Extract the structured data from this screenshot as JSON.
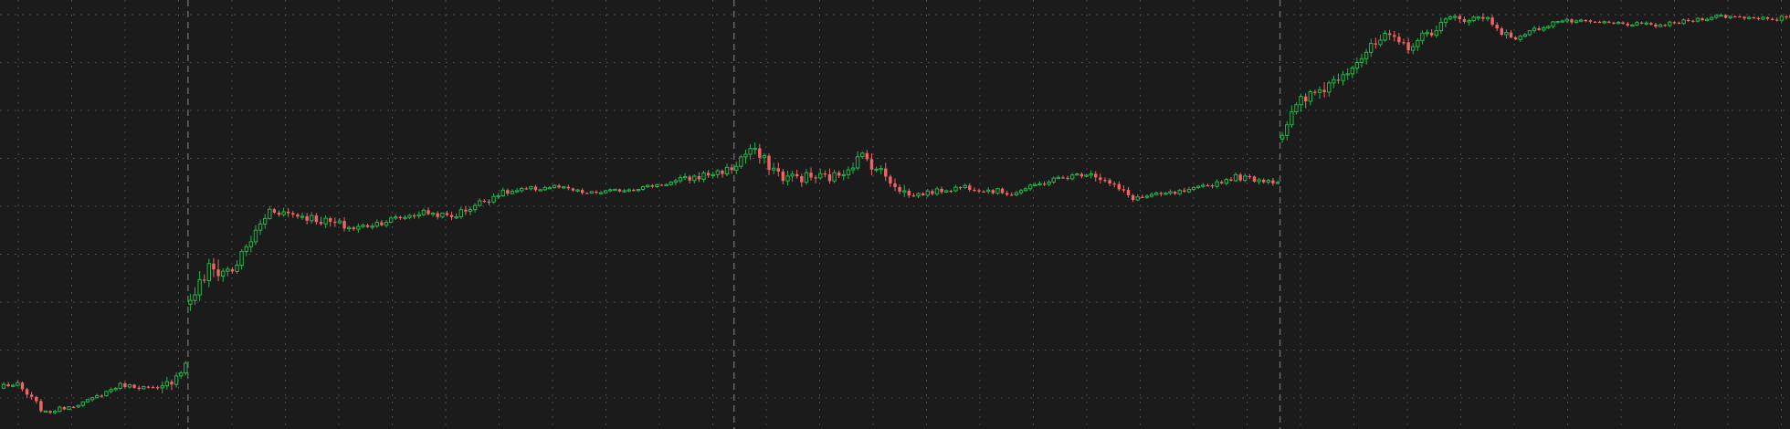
{
  "chart_data": {
    "type": "candlestick",
    "title": "",
    "xlabel": "",
    "ylabel": "",
    "ylim": [
      0,
      8.8
    ],
    "grid": true,
    "session_breaks": [
      40,
      157,
      274
    ],
    "colors": {
      "up": "#22b44a",
      "down": "#f26464",
      "grid": "#4a4a4a",
      "session_line": "#6a6a6a",
      "background": "#1b1b1b"
    },
    "segments": [
      {
        "start": 0,
        "end": 3,
        "from": 0.75,
        "to": 0.73,
        "noise": 0.05
      },
      {
        "start": 3,
        "end": 9,
        "from": 0.73,
        "to": 0.15,
        "noise": 0.07
      },
      {
        "start": 9,
        "end": 18,
        "from": 0.15,
        "to": 0.4,
        "noise": 0.04
      },
      {
        "start": 18,
        "end": 25,
        "from": 0.4,
        "to": 0.75,
        "noise": 0.04
      },
      {
        "start": 25,
        "end": 34,
        "from": 0.75,
        "to": 0.65,
        "noise": 0.04
      },
      {
        "start": 34,
        "end": 39,
        "from": 0.65,
        "to": 1.2,
        "noise": 0.12
      },
      {
        "start": 39,
        "end": 40,
        "from": 1.2,
        "to": 1.25,
        "noise": 0.05
      },
      {
        "start": 40,
        "end": 44,
        "from": 2.6,
        "to": 3.2,
        "noise": 0.18
      },
      {
        "start": 44,
        "end": 49,
        "from": 3.2,
        "to": 3.2,
        "noise": 0.2
      },
      {
        "start": 49,
        "end": 57,
        "from": 3.2,
        "to": 4.5,
        "noise": 0.12
      },
      {
        "start": 57,
        "end": 65,
        "from": 4.5,
        "to": 4.35,
        "noise": 0.08
      },
      {
        "start": 65,
        "end": 75,
        "from": 4.35,
        "to": 4.1,
        "noise": 0.1
      },
      {
        "start": 75,
        "end": 90,
        "from": 4.1,
        "to": 4.45,
        "noise": 0.07
      },
      {
        "start": 90,
        "end": 96,
        "from": 4.45,
        "to": 4.35,
        "noise": 0.06
      },
      {
        "start": 96,
        "end": 106,
        "from": 4.35,
        "to": 4.85,
        "noise": 0.08
      },
      {
        "start": 106,
        "end": 118,
        "from": 4.85,
        "to": 5.0,
        "noise": 0.06
      },
      {
        "start": 118,
        "end": 125,
        "from": 5.0,
        "to": 4.85,
        "noise": 0.04
      },
      {
        "start": 125,
        "end": 135,
        "from": 4.85,
        "to": 4.95,
        "noise": 0.04
      },
      {
        "start": 135,
        "end": 144,
        "from": 4.95,
        "to": 5.1,
        "noise": 0.04
      },
      {
        "start": 144,
        "end": 157,
        "from": 5.1,
        "to": 5.4,
        "noise": 0.08
      },
      {
        "start": 157,
        "end": 160,
        "from": 5.5,
        "to": 5.8,
        "noise": 0.15
      },
      {
        "start": 160,
        "end": 167,
        "from": 5.8,
        "to": 5.2,
        "noise": 0.12
      },
      {
        "start": 167,
        "end": 178,
        "from": 5.2,
        "to": 5.2,
        "noise": 0.12
      },
      {
        "start": 178,
        "end": 184,
        "from": 5.2,
        "to": 5.65,
        "noise": 0.12
      },
      {
        "start": 184,
        "end": 194,
        "from": 5.65,
        "to": 4.8,
        "noise": 0.12
      },
      {
        "start": 194,
        "end": 206,
        "from": 4.8,
        "to": 5.0,
        "noise": 0.05
      },
      {
        "start": 206,
        "end": 216,
        "from": 5.0,
        "to": 4.85,
        "noise": 0.06
      },
      {
        "start": 216,
        "end": 225,
        "from": 4.85,
        "to": 5.15,
        "noise": 0.05
      },
      {
        "start": 225,
        "end": 233,
        "from": 5.15,
        "to": 5.3,
        "noise": 0.05
      },
      {
        "start": 233,
        "end": 242,
        "from": 5.3,
        "to": 4.75,
        "noise": 0.08
      },
      {
        "start": 242,
        "end": 254,
        "from": 4.75,
        "to": 4.9,
        "noise": 0.05
      },
      {
        "start": 254,
        "end": 264,
        "from": 4.9,
        "to": 5.2,
        "noise": 0.05
      },
      {
        "start": 264,
        "end": 274,
        "from": 5.2,
        "to": 5.1,
        "noise": 0.06
      },
      {
        "start": 274,
        "end": 278,
        "from": 6.2,
        "to": 6.8,
        "noise": 0.18
      },
      {
        "start": 278,
        "end": 284,
        "from": 6.8,
        "to": 7.2,
        "noise": 0.15
      },
      {
        "start": 284,
        "end": 296,
        "from": 7.2,
        "to": 8.2,
        "noise": 0.12
      },
      {
        "start": 296,
        "end": 301,
        "from": 8.2,
        "to": 8.0,
        "noise": 0.1
      },
      {
        "start": 301,
        "end": 310,
        "from": 8.0,
        "to": 8.6,
        "noise": 0.1
      },
      {
        "start": 310,
        "end": 318,
        "from": 8.6,
        "to": 8.6,
        "noise": 0.08
      },
      {
        "start": 318,
        "end": 323,
        "from": 8.6,
        "to": 8.15,
        "noise": 0.08
      },
      {
        "start": 323,
        "end": 333,
        "from": 8.15,
        "to": 8.55,
        "noise": 0.05
      },
      {
        "start": 333,
        "end": 355,
        "from": 8.55,
        "to": 8.45,
        "noise": 0.04
      },
      {
        "start": 355,
        "end": 367,
        "from": 8.45,
        "to": 8.65,
        "noise": 0.04
      },
      {
        "start": 367,
        "end": 380,
        "from": 8.65,
        "to": 8.6,
        "noise": 0.04
      },
      {
        "start": 380,
        "end": 385,
        "from": 8.6,
        "to": 8.65,
        "noise": 0.05
      }
    ]
  }
}
